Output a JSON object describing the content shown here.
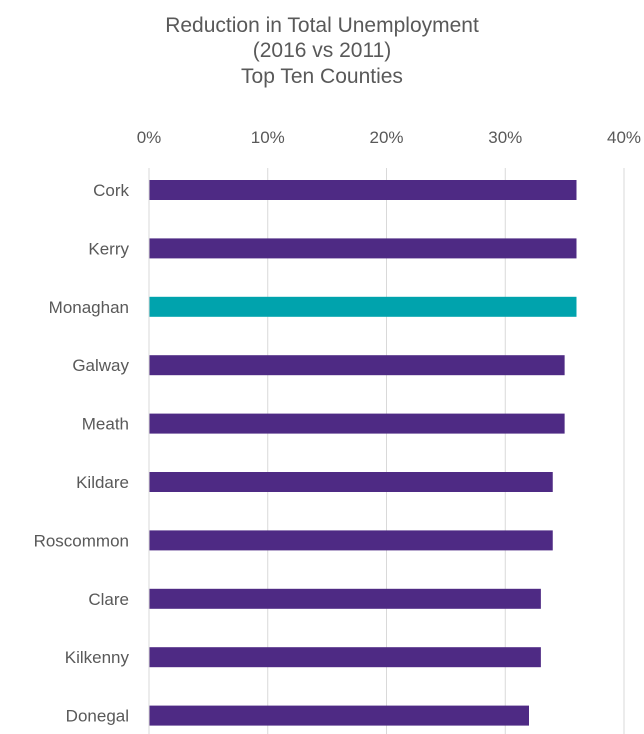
{
  "chart_data": {
    "type": "bar",
    "orientation": "horizontal",
    "title_lines": [
      "Reduction in Total Unemployment",
      "(2016 vs 2011)",
      "Top Ten Counties"
    ],
    "categories": [
      "Cork",
      "Kerry",
      "Monaghan",
      "Galway",
      "Meath",
      "Kildare",
      "Roscommon",
      "Clare",
      "Kilkenny",
      "Donegal"
    ],
    "values": [
      36,
      36,
      36,
      35,
      35,
      34,
      34,
      33,
      33,
      32
    ],
    "unit": "%",
    "xlim": [
      0,
      40
    ],
    "x_ticks": [
      "0%",
      "10%",
      "20%",
      "30%",
      "40%"
    ],
    "x_tick_values": [
      0,
      10,
      20,
      30,
      40
    ],
    "axis_position": "top",
    "grid": true,
    "legend": "none",
    "colors": {
      "default_bar": "#4E2A84",
      "highlight_bar": "#00A3AD",
      "gridline": "#D9D9D9",
      "text": "#595959"
    },
    "highlight_category": "Monaghan"
  }
}
